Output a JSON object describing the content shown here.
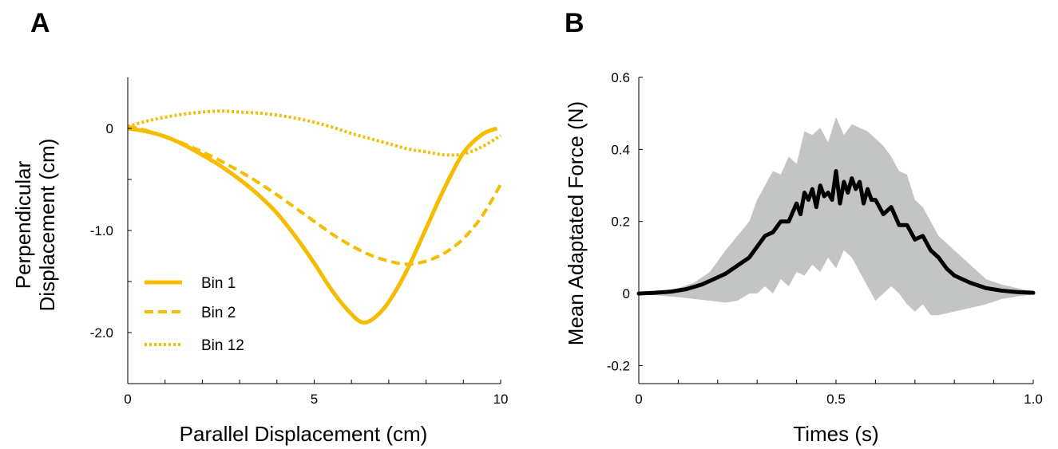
{
  "chart_data": [
    {
      "panel_label": "A",
      "type": "line",
      "title": "",
      "xlabel": "Parallel Displacement (cm)",
      "ylabel_lines": [
        "Perpendicular",
        "Displacement (cm)"
      ],
      "xlim": [
        0,
        10
      ],
      "ylim": [
        -2.5,
        0.5
      ],
      "x_ticks": [
        0,
        1,
        2,
        3,
        4,
        5,
        6,
        7,
        8,
        9,
        10
      ],
      "x_tick_labels": [
        {
          "v": 0,
          "label": "0"
        },
        {
          "v": 5,
          "label": "5"
        },
        {
          "v": 10,
          "label": "10"
        }
      ],
      "y_ticks": [
        -2.0,
        -1.5,
        -1.0,
        -0.5,
        0
      ],
      "y_tick_labels": [
        {
          "v": 0,
          "label": "0"
        },
        {
          "v": -1.0,
          "label": "-1.0"
        },
        {
          "v": -2.0,
          "label": "-2.0"
        }
      ],
      "grid": false,
      "legend_position": "bottom-left",
      "color": "#F5BC00",
      "series": [
        {
          "name": "Bin 1",
          "style": "solid",
          "x": [
            0,
            0.5,
            1,
            1.5,
            2,
            2.5,
            3,
            3.5,
            4,
            4.5,
            5,
            5.5,
            6,
            6.3,
            6.6,
            7,
            7.5,
            8,
            8.5,
            9,
            9.5,
            9.9
          ],
          "y": [
            0,
            -0.03,
            -0.08,
            -0.16,
            -0.26,
            -0.37,
            -0.5,
            -0.65,
            -0.83,
            -1.06,
            -1.32,
            -1.6,
            -1.82,
            -1.9,
            -1.86,
            -1.7,
            -1.38,
            -0.98,
            -0.58,
            -0.24,
            -0.06,
            0
          ]
        },
        {
          "name": "Bin 2",
          "style": "dashed",
          "x": [
            0,
            0.5,
            1,
            1.5,
            2,
            2.5,
            3,
            3.5,
            4,
            4.5,
            5,
            5.5,
            6,
            6.5,
            7,
            7.5,
            8,
            8.5,
            9,
            9.5,
            10
          ],
          "y": [
            0.02,
            -0.02,
            -0.08,
            -0.15,
            -0.23,
            -0.32,
            -0.42,
            -0.53,
            -0.65,
            -0.78,
            -0.91,
            -1.04,
            -1.15,
            -1.24,
            -1.3,
            -1.33,
            -1.3,
            -1.22,
            -1.08,
            -0.86,
            -0.55
          ]
        },
        {
          "name": "Bin 12",
          "style": "dotted",
          "x": [
            0,
            0.5,
            1,
            1.5,
            2,
            2.5,
            3,
            3.5,
            4,
            4.5,
            5,
            5.5,
            6,
            6.5,
            7,
            7.5,
            8,
            8.5,
            9,
            9.5,
            10
          ],
          "y": [
            0.02,
            0.07,
            0.11,
            0.14,
            0.16,
            0.17,
            0.16,
            0.15,
            0.13,
            0.1,
            0.06,
            0.01,
            -0.05,
            -0.1,
            -0.15,
            -0.2,
            -0.23,
            -0.26,
            -0.25,
            -0.18,
            -0.07
          ]
        }
      ]
    },
    {
      "panel_label": "B",
      "type": "line",
      "title": "",
      "xlabel": "Times (s)",
      "ylabel": "Mean Adaptated Force (N)",
      "xlim": [
        0,
        1.0
      ],
      "ylim": [
        -0.25,
        0.6
      ],
      "x_ticks": [
        0,
        0.1,
        0.2,
        0.3,
        0.4,
        0.5,
        0.6,
        0.7,
        0.8,
        0.9,
        1.0
      ],
      "x_tick_labels": [
        {
          "v": 0,
          "label": "0"
        },
        {
          "v": 0.5,
          "label": "0.5"
        },
        {
          "v": 1.0,
          "label": "1.0"
        }
      ],
      "y_ticks": [
        -0.2,
        0,
        0.2,
        0.4,
        0.6
      ],
      "y_tick_labels": [
        {
          "v": 0.6,
          "label": "0.6"
        },
        {
          "v": 0.4,
          "label": "0.4"
        },
        {
          "v": 0.2,
          "label": "0.2"
        },
        {
          "v": 0,
          "label": "0"
        },
        {
          "v": -0.2,
          "label": "-0.2"
        }
      ],
      "grid": false,
      "mean_color": "#000000",
      "band_color": "#C3C4C4",
      "mean": {
        "x": [
          0,
          0.04,
          0.08,
          0.12,
          0.16,
          0.2,
          0.22,
          0.24,
          0.26,
          0.28,
          0.3,
          0.32,
          0.34,
          0.36,
          0.38,
          0.4,
          0.41,
          0.42,
          0.43,
          0.44,
          0.45,
          0.46,
          0.47,
          0.48,
          0.49,
          0.5,
          0.51,
          0.52,
          0.53,
          0.54,
          0.55,
          0.56,
          0.57,
          0.58,
          0.59,
          0.6,
          0.62,
          0.64,
          0.66,
          0.68,
          0.7,
          0.72,
          0.74,
          0.76,
          0.78,
          0.8,
          0.84,
          0.88,
          0.92,
          0.96,
          1.0
        ],
        "y": [
          0,
          0.002,
          0.005,
          0.012,
          0.025,
          0.045,
          0.055,
          0.07,
          0.085,
          0.1,
          0.13,
          0.16,
          0.17,
          0.2,
          0.2,
          0.25,
          0.22,
          0.28,
          0.26,
          0.29,
          0.24,
          0.3,
          0.27,
          0.28,
          0.26,
          0.34,
          0.25,
          0.31,
          0.28,
          0.32,
          0.29,
          0.31,
          0.25,
          0.29,
          0.26,
          0.26,
          0.22,
          0.24,
          0.19,
          0.19,
          0.15,
          0.16,
          0.12,
          0.1,
          0.07,
          0.05,
          0.03,
          0.015,
          0.008,
          0.004,
          0.002
        ]
      },
      "band_upper": {
        "x": [
          0,
          0.05,
          0.1,
          0.14,
          0.18,
          0.22,
          0.25,
          0.28,
          0.3,
          0.32,
          0.34,
          0.36,
          0.38,
          0.4,
          0.42,
          0.44,
          0.46,
          0.48,
          0.5,
          0.52,
          0.54,
          0.56,
          0.58,
          0.6,
          0.62,
          0.64,
          0.66,
          0.68,
          0.7,
          0.72,
          0.74,
          0.76,
          0.8,
          0.84,
          0.88,
          0.92,
          0.96,
          1.0
        ],
        "y": [
          0.003,
          0.006,
          0.015,
          0.03,
          0.06,
          0.12,
          0.16,
          0.2,
          0.26,
          0.3,
          0.34,
          0.33,
          0.38,
          0.36,
          0.45,
          0.44,
          0.46,
          0.42,
          0.49,
          0.44,
          0.47,
          0.46,
          0.45,
          0.43,
          0.41,
          0.38,
          0.34,
          0.33,
          0.26,
          0.24,
          0.2,
          0.16,
          0.12,
          0.08,
          0.04,
          0.025,
          0.015,
          0.005
        ]
      },
      "band_lower": {
        "x": [
          0,
          0.05,
          0.1,
          0.14,
          0.18,
          0.22,
          0.25,
          0.28,
          0.3,
          0.32,
          0.34,
          0.36,
          0.38,
          0.4,
          0.42,
          0.44,
          0.46,
          0.48,
          0.5,
          0.52,
          0.54,
          0.56,
          0.58,
          0.6,
          0.62,
          0.64,
          0.66,
          0.68,
          0.7,
          0.72,
          0.74,
          0.76,
          0.8,
          0.84,
          0.88,
          0.92,
          0.96,
          1.0
        ],
        "y": [
          -0.003,
          -0.005,
          -0.01,
          -0.015,
          -0.02,
          -0.025,
          -0.02,
          0.0,
          0.0,
          0.02,
          0.0,
          0.04,
          0.02,
          0.06,
          0.05,
          0.08,
          0.06,
          0.1,
          0.07,
          0.12,
          0.1,
          0.06,
          0.02,
          -0.02,
          0.0,
          0.02,
          0.0,
          -0.03,
          -0.05,
          -0.03,
          -0.06,
          -0.06,
          -0.05,
          -0.04,
          -0.03,
          -0.015,
          -0.008,
          -0.003
        ]
      }
    }
  ],
  "legend": {
    "items": [
      {
        "label": "Bin 1",
        "style": "solid"
      },
      {
        "label": "Bin 2",
        "style": "dashed"
      },
      {
        "label": "Bin 12",
        "style": "dotted"
      }
    ]
  }
}
